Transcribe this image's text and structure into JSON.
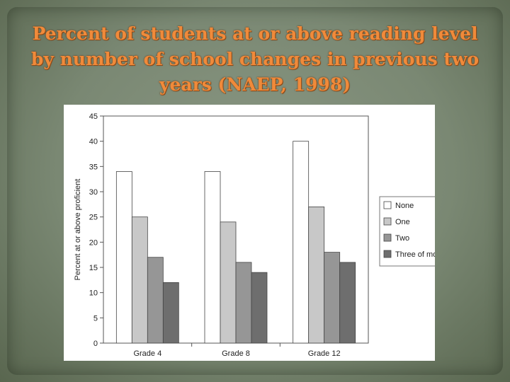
{
  "slide": {
    "title": "Percent of students at or above reading level by number of school changes in previous two years (NAEP, 1998)"
  },
  "colors": {
    "background": "#7d8b76",
    "title": "#f08a3a",
    "none": "#ffffff",
    "one": "#c8c8c8",
    "two": "#969696",
    "three_or_more": "#6e6e6e"
  },
  "chart_data": {
    "type": "bar",
    "categories": [
      "Grade 4",
      "Grade 8",
      "Grade 12"
    ],
    "series": [
      {
        "name": "None",
        "values": [
          34,
          34,
          40
        ]
      },
      {
        "name": "One",
        "values": [
          25,
          24,
          27
        ]
      },
      {
        "name": "Two",
        "values": [
          17,
          16,
          18
        ]
      },
      {
        "name": "Three of more",
        "values": [
          12,
          14,
          16
        ]
      }
    ],
    "ylabel": "Percent at or above proficient",
    "xlabel": "",
    "ylim": [
      0,
      45
    ],
    "yticks": [
      0,
      5,
      10,
      15,
      20,
      25,
      30,
      35,
      40,
      45
    ],
    "grid": false,
    "legend": "right"
  }
}
